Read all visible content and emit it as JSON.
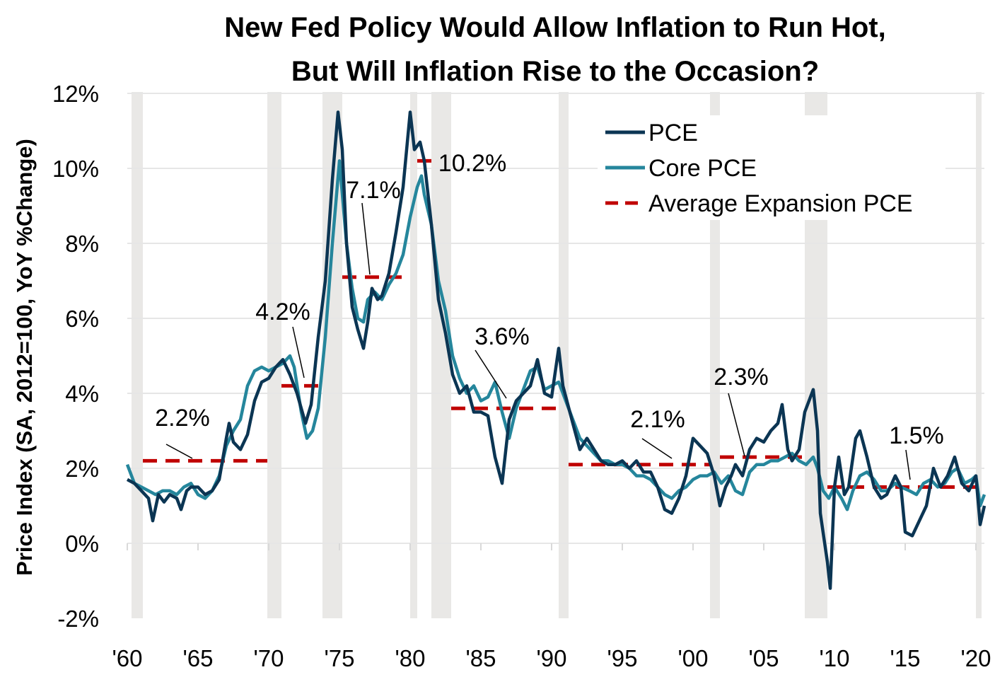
{
  "chart_data": {
    "type": "line",
    "title": [
      "New Fed Policy Would Allow Inflation to Run Hot,",
      "But Will Inflation Rise to the Occasion?"
    ],
    "ylabel": "Price Index (SA, 2012=100, YoY %Change)",
    "xlabel": "",
    "ylim": [
      -2,
      12
    ],
    "xlim": [
      1960,
      2020.6
    ],
    "grid": true,
    "legend_position": "top-right",
    "y_ticks": [
      {
        "v": -2,
        "label": "-2%"
      },
      {
        "v": 0,
        "label": "0%"
      },
      {
        "v": 2,
        "label": "2%"
      },
      {
        "v": 4,
        "label": "4%"
      },
      {
        "v": 6,
        "label": "6%"
      },
      {
        "v": 8,
        "label": "8%"
      },
      {
        "v": 10,
        "label": "10%"
      },
      {
        "v": 12,
        "label": "12%"
      }
    ],
    "x_ticks": [
      {
        "v": 1960,
        "label": "'60"
      },
      {
        "v": 1965,
        "label": "'65"
      },
      {
        "v": 1970,
        "label": "'70"
      },
      {
        "v": 1975,
        "label": "'75"
      },
      {
        "v": 1980,
        "label": "'80"
      },
      {
        "v": 1985,
        "label": "'85"
      },
      {
        "v": 1990,
        "label": "'90"
      },
      {
        "v": 1995,
        "label": "'95"
      },
      {
        "v": 2000,
        "label": "'00"
      },
      {
        "v": 2005,
        "label": "'05"
      },
      {
        "v": 2010,
        "label": "'10"
      },
      {
        "v": 2015,
        "label": "'15"
      },
      {
        "v": 2020,
        "label": "'20"
      }
    ],
    "recessions": [
      [
        1960.3,
        1961.1
      ],
      [
        1969.9,
        1970.9
      ],
      [
        1973.8,
        1975.2
      ],
      [
        1980.0,
        1980.5
      ],
      [
        1981.5,
        1982.9
      ],
      [
        1990.5,
        1991.2
      ],
      [
        2001.2,
        2001.9
      ],
      [
        2007.9,
        2009.5
      ],
      [
        2020.0,
        2020.4
      ]
    ],
    "series": [
      {
        "name": "PCE",
        "color": "#0b3553",
        "points": [
          [
            1960,
            1.7
          ],
          [
            1960.5,
            1.6
          ],
          [
            1961,
            1.4
          ],
          [
            1961.5,
            1.2
          ],
          [
            1961.8,
            0.6
          ],
          [
            1962.2,
            1.3
          ],
          [
            1962.6,
            1.1
          ],
          [
            1963,
            1.3
          ],
          [
            1963.5,
            1.2
          ],
          [
            1963.8,
            0.9
          ],
          [
            1964.2,
            1.4
          ],
          [
            1964.5,
            1.5
          ],
          [
            1965,
            1.5
          ],
          [
            1965.5,
            1.3
          ],
          [
            1966,
            1.4
          ],
          [
            1966.5,
            1.7
          ],
          [
            1967,
            2.8
          ],
          [
            1967.2,
            3.2
          ],
          [
            1967.5,
            2.7
          ],
          [
            1968,
            2.5
          ],
          [
            1968.5,
            2.9
          ],
          [
            1969,
            3.8
          ],
          [
            1969.5,
            4.3
          ],
          [
            1970,
            4.4
          ],
          [
            1970.5,
            4.7
          ],
          [
            1971,
            4.9
          ],
          [
            1971.5,
            4.5
          ],
          [
            1972,
            4.0
          ],
          [
            1972.3,
            3.6
          ],
          [
            1972.6,
            3.2
          ],
          [
            1973,
            3.7
          ],
          [
            1973.5,
            5.5
          ],
          [
            1974,
            7.0
          ],
          [
            1974.5,
            9.7
          ],
          [
            1974.9,
            11.5
          ],
          [
            1975.2,
            10.5
          ],
          [
            1975.5,
            8.0
          ],
          [
            1975.9,
            6.3
          ],
          [
            1976.3,
            5.7
          ],
          [
            1976.7,
            5.2
          ],
          [
            1977,
            5.9
          ],
          [
            1977.3,
            6.8
          ],
          [
            1977.7,
            6.5
          ],
          [
            1978,
            6.6
          ],
          [
            1978.5,
            7.2
          ],
          [
            1979,
            8.3
          ],
          [
            1979.5,
            9.5
          ],
          [
            1980,
            11.5
          ],
          [
            1980.3,
            10.5
          ],
          [
            1980.7,
            10.7
          ],
          [
            1981,
            10.2
          ],
          [
            1981.5,
            8.5
          ],
          [
            1982,
            6.5
          ],
          [
            1982.5,
            5.6
          ],
          [
            1983,
            4.5
          ],
          [
            1983.5,
            4.0
          ],
          [
            1984,
            4.2
          ],
          [
            1984.5,
            3.5
          ],
          [
            1985,
            3.5
          ],
          [
            1985.5,
            3.4
          ],
          [
            1986,
            2.3
          ],
          [
            1986.5,
            1.6
          ],
          [
            1987,
            3.3
          ],
          [
            1987.5,
            3.8
          ],
          [
            1988,
            4.0
          ],
          [
            1988.5,
            4.2
          ],
          [
            1989,
            4.9
          ],
          [
            1989.5,
            4.0
          ],
          [
            1990,
            3.9
          ],
          [
            1990.5,
            5.2
          ],
          [
            1990.8,
            4.2
          ],
          [
            1991.5,
            3.2
          ],
          [
            1992,
            2.5
          ],
          [
            1992.5,
            2.8
          ],
          [
            1993,
            2.5
          ],
          [
            1993.5,
            2.2
          ],
          [
            1994,
            2.1
          ],
          [
            1994.5,
            2.1
          ],
          [
            1995,
            2.2
          ],
          [
            1995.5,
            2.0
          ],
          [
            1996,
            2.2
          ],
          [
            1996.5,
            1.9
          ],
          [
            1997,
            1.9
          ],
          [
            1997.5,
            1.5
          ],
          [
            1998,
            0.9
          ],
          [
            1998.5,
            0.8
          ],
          [
            1999,
            1.2
          ],
          [
            1999.5,
            1.8
          ],
          [
            2000,
            2.8
          ],
          [
            2000.5,
            2.6
          ],
          [
            2001,
            2.4
          ],
          [
            2001.5,
            1.8
          ],
          [
            2001.9,
            1.0
          ],
          [
            2002.3,
            1.5
          ],
          [
            2002.7,
            1.8
          ],
          [
            2003,
            2.1
          ],
          [
            2003.5,
            1.8
          ],
          [
            2004,
            2.5
          ],
          [
            2004.5,
            2.8
          ],
          [
            2005,
            2.7
          ],
          [
            2005.5,
            3.0
          ],
          [
            2006,
            3.2
          ],
          [
            2006.3,
            3.7
          ],
          [
            2006.7,
            2.5
          ],
          [
            2007,
            2.2
          ],
          [
            2007.5,
            2.5
          ],
          [
            2007.9,
            3.5
          ],
          [
            2008.5,
            4.1
          ],
          [
            2008.8,
            3.0
          ],
          [
            2009,
            0.8
          ],
          [
            2009.5,
            -0.5
          ],
          [
            2009.7,
            -1.2
          ],
          [
            2010,
            1.5
          ],
          [
            2010.3,
            2.3
          ],
          [
            2010.7,
            1.3
          ],
          [
            2011,
            1.5
          ],
          [
            2011.5,
            2.8
          ],
          [
            2011.8,
            3.0
          ],
          [
            2012.3,
            2.3
          ],
          [
            2012.8,
            1.5
          ],
          [
            2013.3,
            1.2
          ],
          [
            2013.7,
            1.3
          ],
          [
            2014.3,
            1.8
          ],
          [
            2014.7,
            1.5
          ],
          [
            2015,
            0.3
          ],
          [
            2015.5,
            0.2
          ],
          [
            2016,
            0.6
          ],
          [
            2016.5,
            1.0
          ],
          [
            2017,
            2.0
          ],
          [
            2017.5,
            1.5
          ],
          [
            2018,
            1.8
          ],
          [
            2018.5,
            2.3
          ],
          [
            2019,
            1.6
          ],
          [
            2019.5,
            1.4
          ],
          [
            2020,
            1.8
          ],
          [
            2020.3,
            0.5
          ],
          [
            2020.6,
            1.0
          ]
        ]
      },
      {
        "name": "Core PCE",
        "color": "#25869c",
        "points": [
          [
            1960,
            2.1
          ],
          [
            1960.5,
            1.6
          ],
          [
            1961,
            1.5
          ],
          [
            1961.5,
            1.4
          ],
          [
            1962,
            1.3
          ],
          [
            1962.5,
            1.4
          ],
          [
            1963,
            1.4
          ],
          [
            1963.5,
            1.3
          ],
          [
            1964,
            1.5
          ],
          [
            1964.5,
            1.6
          ],
          [
            1965,
            1.3
          ],
          [
            1965.5,
            1.2
          ],
          [
            1966,
            1.4
          ],
          [
            1966.5,
            1.8
          ],
          [
            1967,
            2.6
          ],
          [
            1967.5,
            3.0
          ],
          [
            1968,
            3.3
          ],
          [
            1968.5,
            4.2
          ],
          [
            1969,
            4.6
          ],
          [
            1969.5,
            4.7
          ],
          [
            1970,
            4.6
          ],
          [
            1970.5,
            4.7
          ],
          [
            1971,
            4.8
          ],
          [
            1971.5,
            5.0
          ],
          [
            1971.8,
            4.7
          ],
          [
            1972.3,
            3.5
          ],
          [
            1972.7,
            2.8
          ],
          [
            1973.1,
            3.0
          ],
          [
            1973.5,
            3.6
          ],
          [
            1974,
            5.5
          ],
          [
            1974.5,
            8.0
          ],
          [
            1975,
            10.2
          ],
          [
            1975.5,
            8.0
          ],
          [
            1975.9,
            6.8
          ],
          [
            1976.3,
            6.0
          ],
          [
            1976.7,
            5.9
          ],
          [
            1977,
            6.5
          ],
          [
            1977.5,
            6.7
          ],
          [
            1978,
            6.5
          ],
          [
            1978.5,
            6.9
          ],
          [
            1979,
            7.2
          ],
          [
            1979.5,
            7.7
          ],
          [
            1980,
            8.7
          ],
          [
            1980.5,
            9.5
          ],
          [
            1980.8,
            9.8
          ],
          [
            1981,
            9.3
          ],
          [
            1981.5,
            8.5
          ],
          [
            1982,
            7.0
          ],
          [
            1982.5,
            6.2
          ],
          [
            1983,
            5.0
          ],
          [
            1983.5,
            4.4
          ],
          [
            1984,
            4.0
          ],
          [
            1984.5,
            4.2
          ],
          [
            1985,
            3.8
          ],
          [
            1985.5,
            3.9
          ],
          [
            1986,
            4.3
          ],
          [
            1986.5,
            3.5
          ],
          [
            1987,
            2.8
          ],
          [
            1987.5,
            3.6
          ],
          [
            1988,
            4.1
          ],
          [
            1988.5,
            4.6
          ],
          [
            1989,
            4.7
          ],
          [
            1989.5,
            4.1
          ],
          [
            1990,
            4.2
          ],
          [
            1990.5,
            4.3
          ],
          [
            1991,
            3.8
          ],
          [
            1991.5,
            3.3
          ],
          [
            1992,
            2.8
          ],
          [
            1992.5,
            2.6
          ],
          [
            1993,
            2.4
          ],
          [
            1993.5,
            2.2
          ],
          [
            1994,
            2.2
          ],
          [
            1994.5,
            2.1
          ],
          [
            1995,
            2.1
          ],
          [
            1995.5,
            2.0
          ],
          [
            1996,
            1.8
          ],
          [
            1996.5,
            1.8
          ],
          [
            1997,
            1.7
          ],
          [
            1997.5,
            1.5
          ],
          [
            1998,
            1.3
          ],
          [
            1998.5,
            1.2
          ],
          [
            1999,
            1.4
          ],
          [
            1999.5,
            1.5
          ],
          [
            2000,
            1.7
          ],
          [
            2000.5,
            1.8
          ],
          [
            2001,
            1.8
          ],
          [
            2001.5,
            1.9
          ],
          [
            2002,
            1.6
          ],
          [
            2002.5,
            1.8
          ],
          [
            2003,
            1.4
          ],
          [
            2003.5,
            1.3
          ],
          [
            2004,
            1.9
          ],
          [
            2004.5,
            2.1
          ],
          [
            2005,
            2.1
          ],
          [
            2005.5,
            2.2
          ],
          [
            2006,
            2.2
          ],
          [
            2006.5,
            2.3
          ],
          [
            2007,
            2.4
          ],
          [
            2007.5,
            2.2
          ],
          [
            2008,
            2.1
          ],
          [
            2008.5,
            2.3
          ],
          [
            2008.8,
            2.0
          ],
          [
            2009.2,
            1.4
          ],
          [
            2009.6,
            1.2
          ],
          [
            2010,
            1.5
          ],
          [
            2010.5,
            1.2
          ],
          [
            2010.9,
            0.9
          ],
          [
            2011.3,
            1.4
          ],
          [
            2011.8,
            1.8
          ],
          [
            2012.3,
            1.9
          ],
          [
            2012.8,
            1.7
          ],
          [
            2013.3,
            1.4
          ],
          [
            2013.7,
            1.4
          ],
          [
            2014.3,
            1.6
          ],
          [
            2014.7,
            1.5
          ],
          [
            2015.3,
            1.4
          ],
          [
            2015.8,
            1.3
          ],
          [
            2016.3,
            1.6
          ],
          [
            2016.8,
            1.7
          ],
          [
            2017.3,
            1.5
          ],
          [
            2017.8,
            1.6
          ],
          [
            2018.3,
            1.9
          ],
          [
            2018.7,
            2.0
          ],
          [
            2019.2,
            1.6
          ],
          [
            2019.7,
            1.7
          ],
          [
            2020,
            1.8
          ],
          [
            2020.3,
            1.0
          ],
          [
            2020.6,
            1.3
          ]
        ]
      }
    ],
    "average_expansion": {
      "name": "Average Expansion PCE",
      "color": "#c00000",
      "segments": [
        {
          "start": 1961.1,
          "end": 1969.9,
          "value": 2.2,
          "label": "2.2%"
        },
        {
          "start": 1970.9,
          "end": 1973.8,
          "value": 4.2,
          "label": "4.2%"
        },
        {
          "start": 1975.2,
          "end": 1980.0,
          "value": 7.1,
          "label": "7.1%"
        },
        {
          "start": 1980.5,
          "end": 1981.5,
          "value": 10.2,
          "label": "10.2%"
        },
        {
          "start": 1982.9,
          "end": 1990.5,
          "value": 3.6,
          "label": "3.6%"
        },
        {
          "start": 1991.2,
          "end": 2001.2,
          "value": 2.1,
          "label": "2.1%"
        },
        {
          "start": 2001.9,
          "end": 2007.9,
          "value": 2.3,
          "label": "2.3%"
        },
        {
          "start": 2009.5,
          "end": 2020.0,
          "value": 1.5,
          "label": "1.5%"
        }
      ]
    }
  }
}
